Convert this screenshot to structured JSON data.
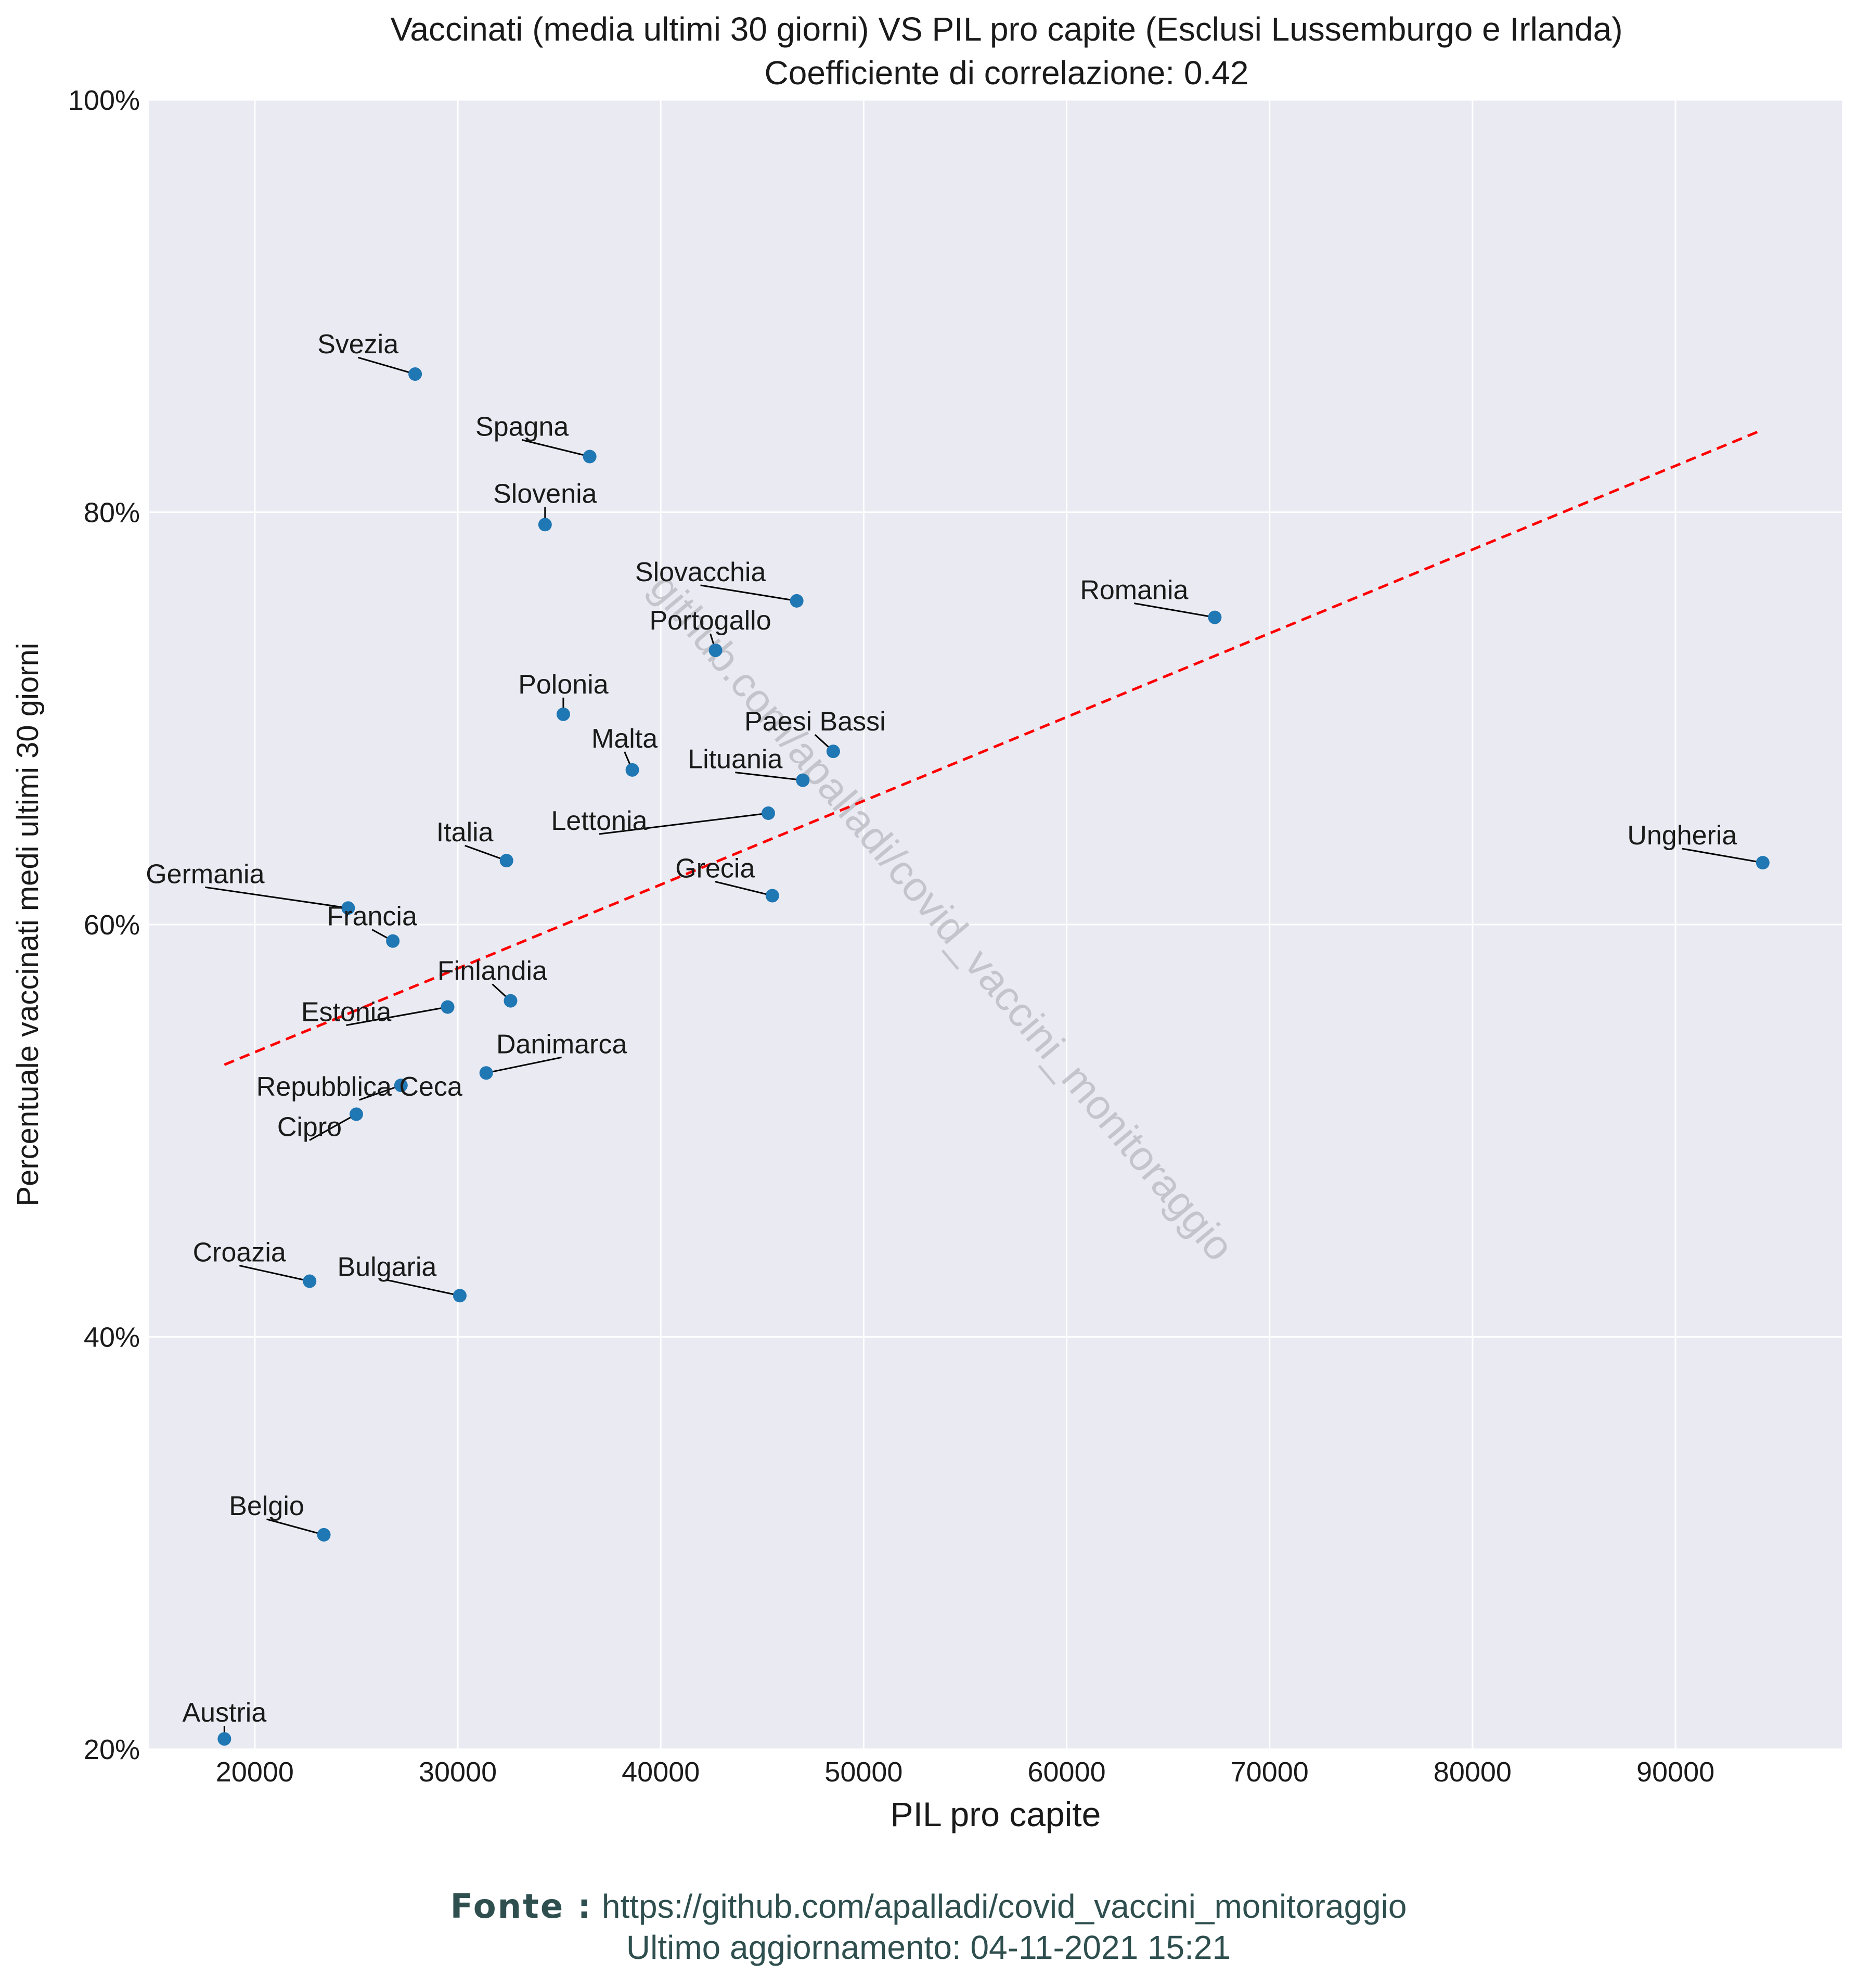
{
  "chart_data": {
    "type": "scatter",
    "title": "Vaccinati (media ultimi 30 giorni) VS PIL pro capite (Esclusi Lussemburgo e Irlanda)",
    "subtitle": "Coefficiente di correlazione: 0.42",
    "xlabel": "PIL pro capite",
    "ylabel": "Percentuale vaccinati medi ultimi 30 giorni",
    "xlim": [
      14800,
      98200
    ],
    "ylim": [
      20,
      100
    ],
    "xticks": [
      20000,
      30000,
      40000,
      50000,
      60000,
      70000,
      80000,
      90000
    ],
    "yticks": [
      20,
      40,
      60,
      80,
      100
    ],
    "ytick_labels": [
      "20%",
      "40%",
      "60%",
      "80%",
      "100%"
    ],
    "grid": true,
    "point_color": "#1f77b4",
    "trend_color": "#ff0000",
    "background": "#eaeaf2",
    "trendline": {
      "x": [
        18500,
        94300
      ],
      "y": [
        53.2,
        84.0
      ]
    },
    "points": [
      {
        "name": "Svezia",
        "x": 27900,
        "y": 86.7
      },
      {
        "name": "Spagna",
        "x": 36500,
        "y": 82.7
      },
      {
        "name": "Slovenia",
        "x": 34300,
        "y": 79.4
      },
      {
        "name": "Slovacchia",
        "x": 46700,
        "y": 75.7
      },
      {
        "name": "Romania",
        "x": 67300,
        "y": 74.9
      },
      {
        "name": "Portogallo",
        "x": 42700,
        "y": 73.3
      },
      {
        "name": "Polonia",
        "x": 35200,
        "y": 70.2
      },
      {
        "name": "Paesi Bassi",
        "x": 48500,
        "y": 68.4
      },
      {
        "name": "Malta",
        "x": 38600,
        "y": 67.5
      },
      {
        "name": "Lituania",
        "x": 47000,
        "y": 67.0
      },
      {
        "name": "Lettonia",
        "x": 45300,
        "y": 65.4
      },
      {
        "name": "Italia",
        "x": 32400,
        "y": 63.1
      },
      {
        "name": "Ungheria",
        "x": 94300,
        "y": 63.0
      },
      {
        "name": "Grecia",
        "x": 45500,
        "y": 61.4
      },
      {
        "name": "Germania",
        "x": 24600,
        "y": 60.8
      },
      {
        "name": "Francia",
        "x": 26800,
        "y": 59.2
      },
      {
        "name": "Finlandia",
        "x": 32600,
        "y": 56.3
      },
      {
        "name": "Estonia",
        "x": 29500,
        "y": 56.0
      },
      {
        "name": "Danimarca",
        "x": 31400,
        "y": 52.8
      },
      {
        "name": "Repubblica Ceca",
        "x": 27200,
        "y": 52.2
      },
      {
        "name": "Cipro",
        "x": 25000,
        "y": 50.8
      },
      {
        "name": "Croazia",
        "x": 22700,
        "y": 42.7
      },
      {
        "name": "Bulgaria",
        "x": 30100,
        "y": 42.0
      },
      {
        "name": "Belgio",
        "x": 23400,
        "y": 30.4
      },
      {
        "name": "Austria",
        "x": 18500,
        "y": 20.5
      }
    ],
    "watermark": "github.com/apalladi/covid_vaccini_monitoraggio"
  },
  "footer": {
    "source_label": "Fonte :",
    "source_url": "https://github.com/apalladi/covid_vaccini_monitoraggio",
    "updated": "Ultimo aggiornamento: 04-11-2021 15:21"
  }
}
